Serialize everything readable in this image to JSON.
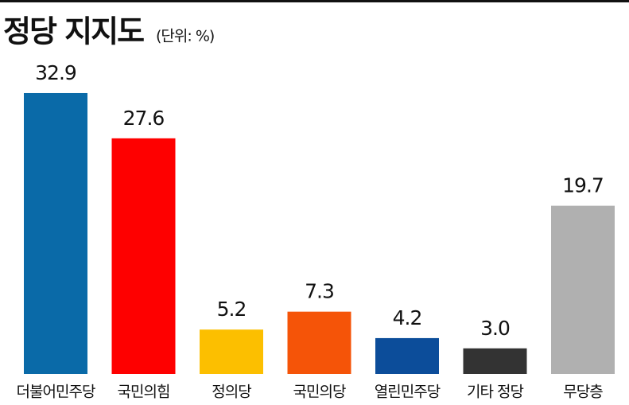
{
  "chart_data": {
    "type": "bar",
    "title": "정당 지지도",
    "subtitle": "(단위: %)",
    "categories": [
      "더불어민주당",
      "국민의힘",
      "정의당",
      "국민의당",
      "열린민주당",
      "기타 정당",
      "무당층"
    ],
    "values": [
      32.9,
      27.6,
      5.2,
      7.3,
      4.2,
      3.0,
      19.7
    ],
    "value_labels": [
      "32.9",
      "27.6",
      "5.2",
      "7.3",
      "4.2",
      "3.0",
      "19.7"
    ],
    "colors": [
      "#0a6aa8",
      "#fe0000",
      "#fcbf00",
      "#f55408",
      "#0c4d9a",
      "#333333",
      "#b0b0b0"
    ]
  }
}
